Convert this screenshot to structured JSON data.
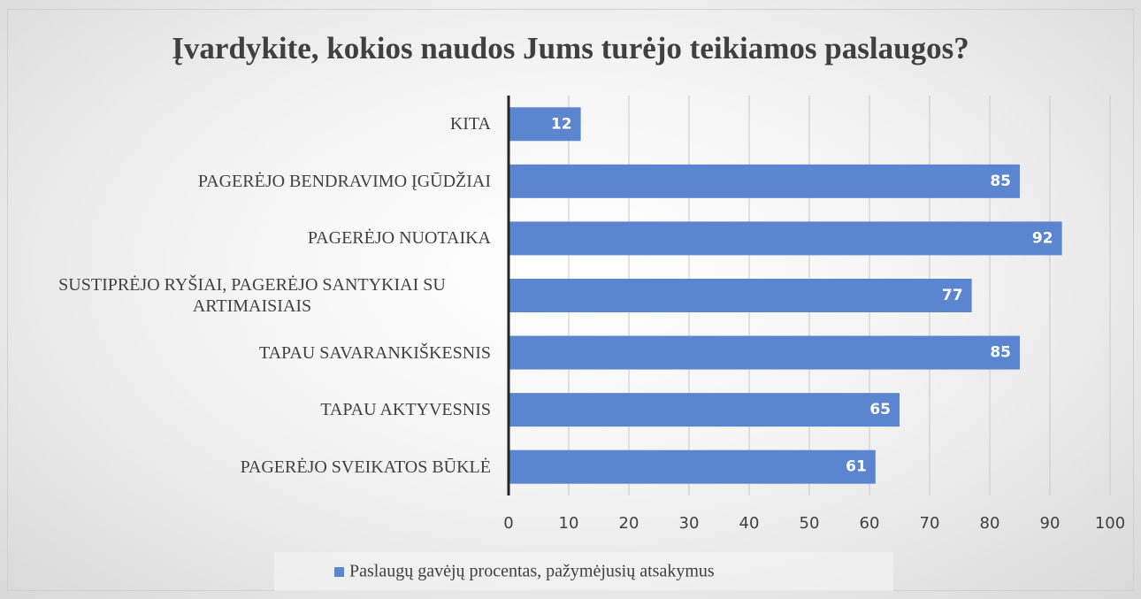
{
  "chart_data": {
    "type": "bar",
    "orientation": "horizontal",
    "title": "Įvardykite, kokios naudos Jums turėjo teikiamos paslaugos?",
    "categories": [
      "KITA",
      "PAGERĖJO BENDRAVIMO ĮGŪDŽIAI",
      "PAGERĖJO NUOTAIKA",
      "SUSTIPRĖJO RYŠIAI, PAGERĖJO SANTYKIAI SU ARTIMAISIAIS",
      "TAPAU SAVARANKIŠKESNIS",
      "TAPAU AKTYVESNIS",
      "PAGERĖJO SVEIKATOS BŪKLĖ"
    ],
    "series": [
      {
        "name": "Paslaugų gavėjų procentas, pažymėjusių atsakymus",
        "color": "#5b85cf",
        "values": [
          12,
          85,
          92,
          77,
          85,
          65,
          61
        ]
      }
    ],
    "xlim": [
      0,
      100
    ],
    "xticks": [
      0,
      10,
      20,
      30,
      40,
      50,
      60,
      70,
      80,
      90,
      100
    ],
    "grid": true,
    "legend": "bottom"
  }
}
